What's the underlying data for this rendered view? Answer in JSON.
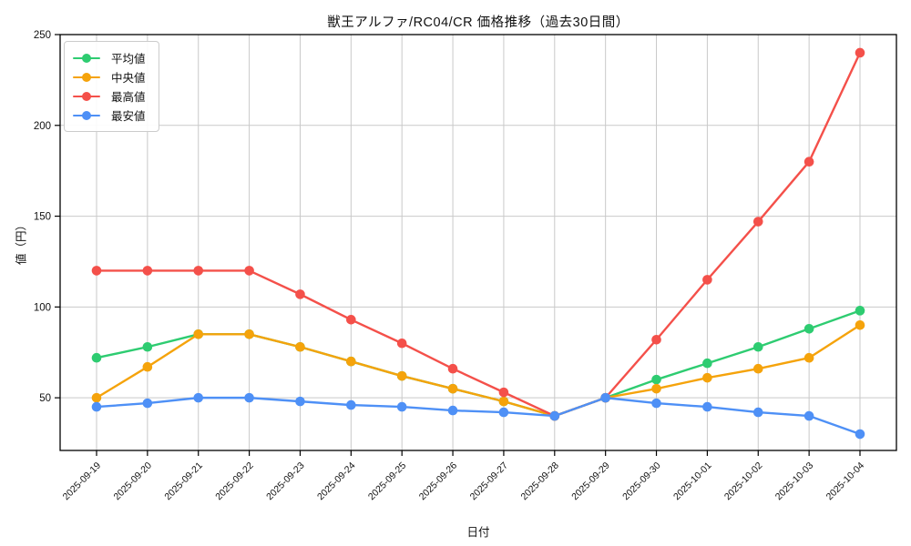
{
  "chart_data": {
    "type": "line",
    "title": "獣王アルファ/RC04/CR 価格推移（過去30日間）",
    "xlabel": "日付",
    "ylabel": "値（円）",
    "x": [
      "2025-09-19",
      "2025-09-20",
      "2025-09-21",
      "2025-09-22",
      "2025-09-23",
      "2025-09-24",
      "2025-09-25",
      "2025-09-26",
      "2025-09-27",
      "2025-09-28",
      "2025-09-29",
      "2025-09-30",
      "2025-10-01",
      "2025-10-02",
      "2025-10-03",
      "2025-10-04"
    ],
    "series": [
      {
        "name": "平均値",
        "color": "#2ECC71",
        "values": [
          72,
          78,
          85,
          85,
          78,
          70,
          62,
          55,
          48,
          40,
          50,
          60,
          69,
          78,
          88,
          98
        ]
      },
      {
        "name": "中央値",
        "color": "#F5A30B",
        "values": [
          50,
          67,
          85,
          85,
          78,
          70,
          62,
          55,
          48,
          40,
          50,
          55,
          61,
          66,
          72,
          90
        ]
      },
      {
        "name": "最高値",
        "color": "#F4504A",
        "values": [
          120,
          120,
          120,
          120,
          107,
          93,
          80,
          66,
          53,
          40,
          50,
          82,
          115,
          147,
          180,
          240
        ]
      },
      {
        "name": "最安値",
        "color": "#4E90F6",
        "values": [
          45,
          47,
          50,
          50,
          48,
          46,
          45,
          43,
          42,
          40,
          50,
          47,
          45,
          42,
          40,
          30
        ]
      }
    ],
    "ylim": [
      21,
      250
    ],
    "yticks": [
      50,
      100,
      150,
      200,
      250
    ],
    "grid": true,
    "legend_position": "upper left",
    "grid_color": "#c9c9c9",
    "spine_color": "#000000"
  }
}
